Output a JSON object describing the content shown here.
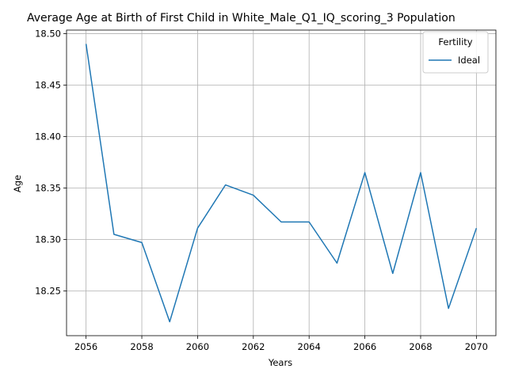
{
  "chart_data": {
    "type": "line",
    "title": "Average Age at Birth of First Child in White_Male_Q1_IQ_scoring_3 Population",
    "xlabel": "Years",
    "ylabel": "Age",
    "x": [
      2056,
      2057,
      2058,
      2059,
      2060,
      2061,
      2062,
      2063,
      2064,
      2065,
      2066,
      2067,
      2068,
      2069,
      2070
    ],
    "series": [
      {
        "name": "Ideal",
        "color": "#1f77b4",
        "values": [
          18.49,
          18.305,
          18.297,
          18.22,
          18.311,
          18.353,
          18.343,
          18.317,
          18.317,
          18.277,
          18.365,
          18.267,
          18.365,
          18.233,
          18.311
        ]
      }
    ],
    "xlim": [
      2055.3,
      2070.7
    ],
    "ylim": [
      18.2065,
      18.5035
    ],
    "xticks": [
      "2056",
      "2058",
      "2060",
      "2062",
      "2064",
      "2066",
      "2068",
      "2070"
    ],
    "yticks": [
      "18.25",
      "18.30",
      "18.35",
      "18.40",
      "18.45",
      "18.50"
    ],
    "grid": true,
    "legend": {
      "title": "Fertility",
      "placement": "top-right"
    }
  }
}
